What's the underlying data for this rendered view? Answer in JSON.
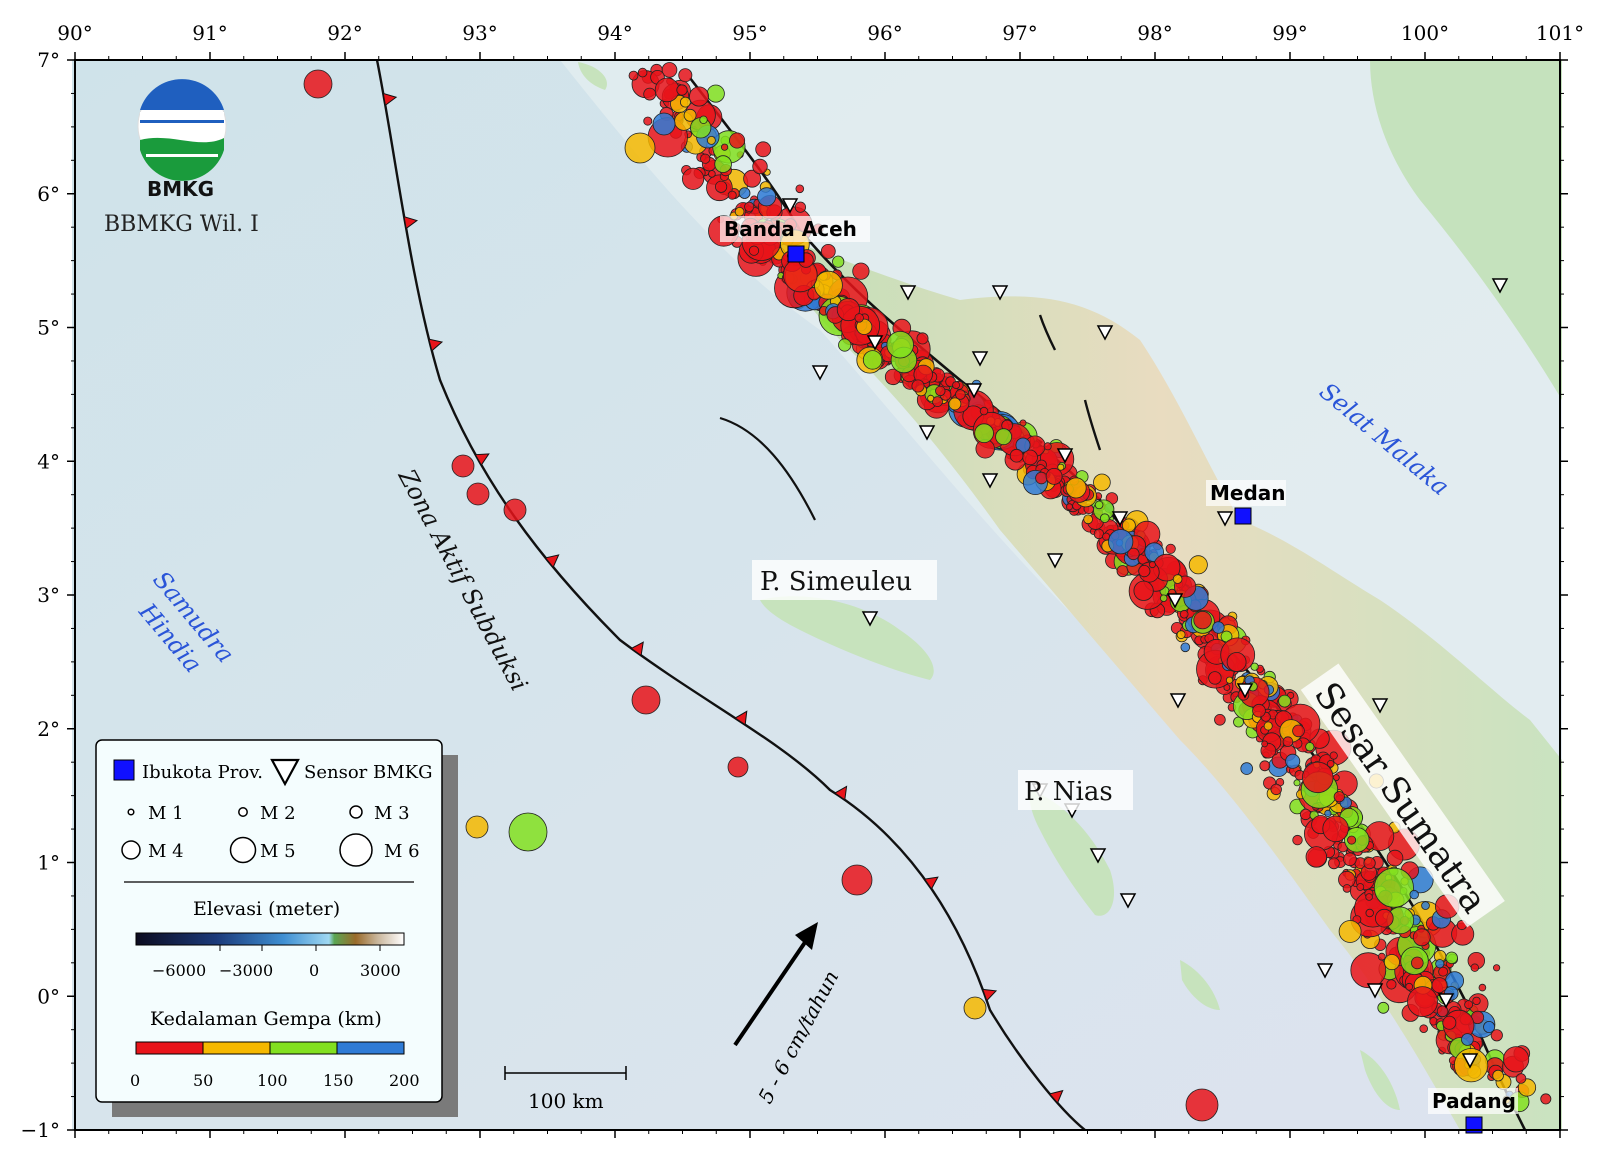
{
  "axes": {
    "lon_ticks": [
      "90°",
      "91°",
      "92°",
      "93°",
      "94°",
      "95°",
      "96°",
      "97°",
      "98°",
      "99°",
      "100°",
      "101°"
    ],
    "lat_ticks": [
      "7°",
      "6°",
      "5°",
      "4°",
      "3°",
      "2°",
      "1°",
      "0°",
      "−1°"
    ],
    "lon_range": [
      90,
      101
    ],
    "lat_range": [
      -1,
      7
    ]
  },
  "logo": {
    "text": "BMKG",
    "subtitle": "BBMKG Wil. I",
    "colors": [
      "#1f5fbf",
      "#1a9b3c"
    ]
  },
  "labels": {
    "cities": [
      {
        "name": "Banda Aceh",
        "lon": 95.32,
        "lat": 5.55
      },
      {
        "name": "Medan",
        "lon": 98.68,
        "lat": 3.59
      },
      {
        "name": "Padang",
        "lon": 100.36,
        "lat": -0.95
      }
    ],
    "islands": [
      {
        "name": "P. Simeuleu",
        "lon": 96.1,
        "lat": 3.1
      },
      {
        "name": "P. Nias",
        "lon": 97.6,
        "lat": 1.55
      }
    ],
    "seas": [
      {
        "name": "Samudra",
        "lon": 90.9,
        "lat": 2.9
      },
      {
        "name": "Hindia",
        "lon": 90.75,
        "lat": 2.55
      },
      {
        "name": "Selat Malaka",
        "lon": 99.8,
        "lat": 4.0
      }
    ],
    "subduction": "Zona Aktif Subduksi",
    "fault": "Sesar Sumatra",
    "plate_motion": "5 - 6 cm/tahun"
  },
  "legend": {
    "capital": "Ibukota Prov.",
    "sensor": "Sensor BMKG",
    "magnitudes": [
      "M 1",
      "M 2",
      "M 3",
      "M 4",
      "M 5",
      "M 6"
    ],
    "elevation_title": "Elevasi (meter)",
    "elevation_ticks": [
      "−6000",
      "−3000",
      "0",
      "3000"
    ],
    "depth_title": "Kedalaman Gempa (km)",
    "depth_ticks": [
      "0",
      "50",
      "100",
      "150",
      "200"
    ],
    "depth_colors": [
      "#e8141a",
      "#f5b800",
      "#82e020",
      "#2f7bd6"
    ],
    "scale_bar": "100 km"
  }
}
